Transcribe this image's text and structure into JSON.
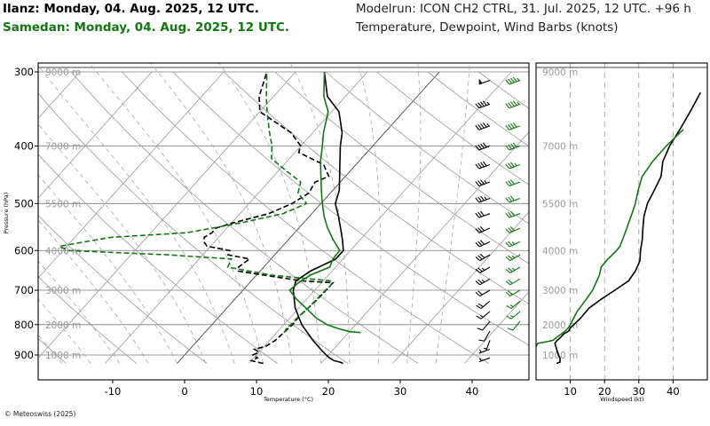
{
  "header": {
    "station1": "Ilanz: Monday, 04. Aug. 2025, 12 UTC.",
    "station2": "Samedan: Monday, 04. Aug. 2025, 12 UTC.",
    "modelrun": "Modelrun: ICON CH2 CTRL, 31. Jul. 2025, 12 UTC. +96 h",
    "variables": "Temperature, Dewpoint, Wind Barbs (knots)"
  },
  "credit": "© Meteoswiss (2025)",
  "colors": {
    "station1": "#000000",
    "station2": "#127712",
    "grid": "#8c8c8c"
  },
  "chart_data": [
    {
      "type": "line",
      "subtype": "skew-T log-p diagram",
      "xlabel": "Temperature (°C)",
      "ylabel": "Pressure (hPa)",
      "x_ticks": [
        "-10",
        "0",
        "10",
        "20",
        "30",
        "40"
      ],
      "y_ticks": [
        "300",
        "400",
        "500",
        "600",
        "700",
        "800",
        "900"
      ],
      "height_labels": [
        {
          "label": "9000 m",
          "p": 300
        },
        {
          "label": "7000 m",
          "p": 400
        },
        {
          "label": "5500 m",
          "p": 500
        },
        {
          "label": "4000 m",
          "p": 600
        },
        {
          "label": "3000 m",
          "p": 700
        },
        {
          "label": "2000 m",
          "p": 800
        },
        {
          "label": "1000 m",
          "p": 900
        }
      ],
      "xlim": [
        -20,
        47
      ],
      "ylim": [
        300,
        930
      ],
      "series": [
        {
          "name": "Ilanz",
          "variable": "temperature",
          "style": "solid",
          "p": [
            930,
            925,
            920,
            910,
            900,
            880,
            850,
            800,
            750,
            700,
            675,
            650,
            620,
            600,
            575,
            550,
            525,
            500,
            475,
            450,
            425,
            400,
            380,
            350,
            330,
            300
          ],
          "t": [
            23.1,
            22.5,
            21.5,
            20.5,
            19.7,
            18.2,
            16,
            12.5,
            9.5,
            7,
            6.2,
            7,
            9,
            9,
            7.5,
            5.8,
            4,
            2,
            0.9,
            -0.8,
            -2.6,
            -4.5,
            -5.9,
            -9,
            -12.5,
            -16
          ]
        },
        {
          "name": "Ilanz",
          "variable": "dewpoint",
          "style": "dashed",
          "p": [
            930,
            925,
            920,
            910,
            900,
            890,
            880,
            870,
            850,
            825,
            800,
            775,
            750,
            725,
            700,
            680,
            675,
            650,
            640,
            620,
            610,
            600,
            590,
            580,
            570,
            560,
            550,
            540,
            520,
            500,
            480,
            460,
            450,
            430,
            410,
            400,
            380,
            350,
            330,
            300
          ],
          "t": [
            12,
            11,
            10,
            10.5,
            9.5,
            10,
            9,
            10.2,
            10.8,
            11,
            11.2,
            11.1,
            11.3,
            11.5,
            11.6,
            11.6,
            7,
            -3,
            -3.5,
            -3,
            -6.5,
            -6.8,
            -10.5,
            -11.5,
            -12,
            -11.5,
            -11.5,
            -10,
            -6,
            -4,
            -3,
            -3.5,
            -2.3,
            -4.5,
            -9.5,
            -10,
            -13,
            -20,
            -22,
            -24
          ]
        },
        {
          "name": "Samedan",
          "variable": "temperature",
          "style": "solid",
          "p": [
            825,
            822,
            812,
            800,
            780,
            750,
            725,
            700,
            680,
            660,
            640,
            620,
            600,
            575,
            550,
            525,
            500,
            475,
            450,
            425,
            400,
            380,
            350,
            330,
            300
          ],
          "t": [
            21.7,
            20,
            18,
            16,
            13.7,
            11,
            8.6,
            6.5,
            6.8,
            7.5,
            9.2,
            8.6,
            8.5,
            6.2,
            4,
            2,
            0.2,
            -1.6,
            -3.4,
            -5.3,
            -7,
            -8.5,
            -10.5,
            -13,
            -16
          ]
        },
        {
          "name": "Samedan",
          "variable": "dewpoint",
          "style": "dashed",
          "p": [
            825,
            820,
            810,
            800,
            780,
            750,
            725,
            700,
            690,
            680,
            675,
            660,
            640,
            620,
            610,
            600,
            590,
            580,
            570,
            560,
            550,
            540,
            520,
            500,
            480,
            460,
            440,
            420,
            400,
            380,
            350,
            330,
            300
          ],
          "t": [
            11,
            11,
            10.8,
            11,
            11,
            11.3,
            11.4,
            11.5,
            11.6,
            11.5,
            11,
            2,
            -5,
            -5.5,
            -15,
            -29.3,
            -31,
            -28,
            -25,
            -15,
            -12,
            -9,
            -4,
            -2,
            -4.5,
            -5.5,
            -9,
            -12.5,
            -14,
            -16,
            -19,
            -21,
            -24
          ]
        }
      ]
    },
    {
      "type": "line",
      "xlabel": "Windspeed (kt)",
      "ylabel": "",
      "x_ticks": [
        "10",
        "20",
        "30",
        "40"
      ],
      "xlim": [
        0,
        50
      ],
      "ylim": [
        300,
        930
      ],
      "series": [
        {
          "name": "Ilanz",
          "variable": "windspeed",
          "p": [
            930,
            925,
            910,
            900,
            880,
            860,
            850,
            840,
            830,
            820,
            810,
            800,
            780,
            750,
            725,
            700,
            675,
            650,
            625,
            600,
            590,
            575,
            550,
            525,
            500,
            475,
            450,
            425,
            400,
            375,
            350,
            325
          ],
          "ws": [
            6,
            7,
            7,
            6.5,
            6,
            5.5,
            6.2,
            7.2,
            8,
            9.5,
            10,
            11,
            13,
            15.5,
            19,
            23,
            27,
            29,
            30.3,
            30.5,
            30.7,
            31,
            31.2,
            31.5,
            32.5,
            34.5,
            36.5,
            37,
            39,
            42,
            45,
            48
          ]
        },
        {
          "name": "Samedan",
          "variable": "windspeed",
          "p": [
            870,
            860,
            855,
            850,
            840,
            830,
            820,
            810,
            800,
            780,
            760,
            740,
            720,
            700,
            680,
            660,
            640,
            620,
            600,
            590,
            580,
            570,
            560,
            550,
            540,
            520,
            500,
            475,
            450,
            425,
            400,
            375
          ],
          "ws": [
            0,
            0.5,
            3,
            5,
            6,
            7.3,
            8.5,
            9.4,
            10,
            11,
            12,
            13.5,
            15,
            16.5,
            17.5,
            18.5,
            19,
            21,
            23.5,
            24.5,
            25,
            25.5,
            26,
            26.5,
            27,
            28,
            29,
            29.8,
            31,
            34,
            38,
            43
          ]
        }
      ]
    }
  ],
  "wind_barbs": [
    {
      "station": "Ilanz",
      "color": "#000000",
      "levels": [
        {
          "p": 910,
          "dir": 250,
          "spd": 5
        },
        {
          "p": 880,
          "dir": 250,
          "spd": 5
        },
        {
          "p": 850,
          "dir": 200,
          "spd": 5
        },
        {
          "p": 820,
          "dir": 210,
          "spd": 10
        },
        {
          "p": 790,
          "dir": 220,
          "spd": 10
        },
        {
          "p": 760,
          "dir": 230,
          "spd": 15
        },
        {
          "p": 730,
          "dir": 230,
          "spd": 20
        },
        {
          "p": 700,
          "dir": 240,
          "spd": 20
        },
        {
          "p": 670,
          "dir": 240,
          "spd": 25
        },
        {
          "p": 640,
          "dir": 240,
          "spd": 25
        },
        {
          "p": 610,
          "dir": 240,
          "spd": 30
        },
        {
          "p": 580,
          "dir": 245,
          "spd": 30
        },
        {
          "p": 550,
          "dir": 245,
          "spd": 30
        },
        {
          "p": 520,
          "dir": 250,
          "spd": 30
        },
        {
          "p": 490,
          "dir": 250,
          "spd": 35
        },
        {
          "p": 460,
          "dir": 250,
          "spd": 35
        },
        {
          "p": 430,
          "dir": 250,
          "spd": 40
        },
        {
          "p": 400,
          "dir": 250,
          "spd": 40
        },
        {
          "p": 370,
          "dir": 250,
          "spd": 45
        },
        {
          "p": 340,
          "dir": 250,
          "spd": 45
        },
        {
          "p": 310,
          "dir": 250,
          "spd": 50
        }
      ]
    },
    {
      "station": "Samedan",
      "color": "#127712",
      "levels": [
        {
          "p": 790,
          "dir": 220,
          "spd": 10
        },
        {
          "p": 760,
          "dir": 230,
          "spd": 15
        },
        {
          "p": 730,
          "dir": 230,
          "spd": 15
        },
        {
          "p": 700,
          "dir": 240,
          "spd": 20
        },
        {
          "p": 670,
          "dir": 240,
          "spd": 20
        },
        {
          "p": 640,
          "dir": 240,
          "spd": 25
        },
        {
          "p": 610,
          "dir": 240,
          "spd": 25
        },
        {
          "p": 580,
          "dir": 245,
          "spd": 25
        },
        {
          "p": 550,
          "dir": 245,
          "spd": 30
        },
        {
          "p": 520,
          "dir": 250,
          "spd": 30
        },
        {
          "p": 490,
          "dir": 250,
          "spd": 30
        },
        {
          "p": 460,
          "dir": 250,
          "spd": 30
        },
        {
          "p": 430,
          "dir": 250,
          "spd": 35
        },
        {
          "p": 400,
          "dir": 250,
          "spd": 40
        },
        {
          "p": 370,
          "dir": 250,
          "spd": 40
        },
        {
          "p": 340,
          "dir": 250,
          "spd": 45
        },
        {
          "p": 310,
          "dir": 250,
          "spd": 45
        }
      ]
    }
  ]
}
